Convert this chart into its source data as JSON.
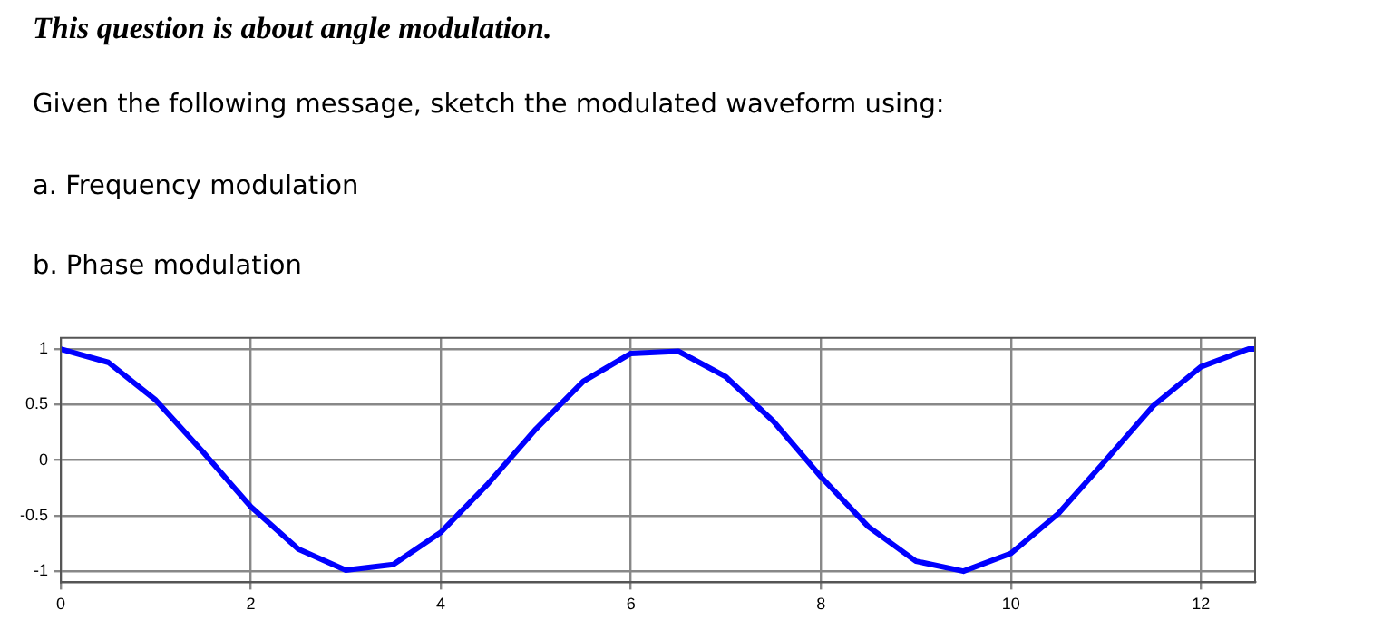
{
  "chart_data": {
    "type": "line",
    "title": "This question is about angle modulation.",
    "subtitle": "Given the following message, sketch the modulated waveform using:",
    "annotations": [
      "a. Frequency modulation",
      "b. Phase modulation"
    ],
    "x": [
      0,
      0.5,
      1,
      1.5,
      2,
      2.5,
      3,
      3.5,
      4,
      4.5,
      5,
      5.5,
      6,
      6.5,
      7,
      7.5,
      8,
      8.5,
      9,
      9.5,
      10,
      10.5,
      11,
      11.5,
      12,
      12.5,
      12.57
    ],
    "series": [
      {
        "color": "#0000ff",
        "values": [
          1,
          0.88,
          0.54,
          0.07,
          -0.42,
          -0.8,
          -0.99,
          -0.94,
          -0.65,
          -0.21,
          0.28,
          0.71,
          0.96,
          0.98,
          0.75,
          0.35,
          -0.15,
          -0.6,
          -0.91,
          -1,
          -0.84,
          -0.48,
          0,
          0.49,
          0.84,
          1,
          1
        ]
      }
    ],
    "xlim": [
      0,
      12.57
    ],
    "ylim": [
      -1.1,
      1.1
    ],
    "xticks": [
      0,
      2,
      4,
      6,
      8,
      10,
      12
    ],
    "yticks": [
      -1,
      -0.5,
      0,
      0.5,
      1
    ],
    "grid": true,
    "legend": false,
    "marker": "none",
    "line_style": "solid"
  }
}
